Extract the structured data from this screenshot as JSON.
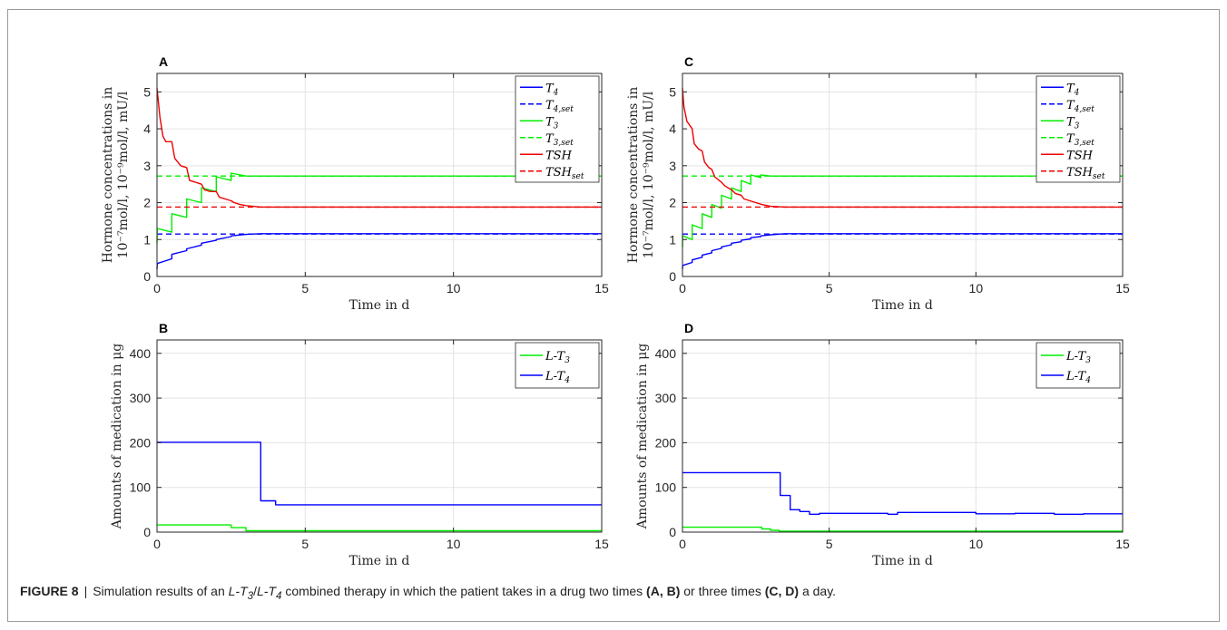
{
  "caption": {
    "label": "FIGURE 8",
    "sep": "|",
    "t1": "Simulation results of an ",
    "drug1": "L-T",
    "drug1_sub": "3",
    "slash": "/",
    "drug2": "L-T",
    "drug2_sub": "4",
    "t2": " combined therapy in which the patient takes in a drug two times ",
    "ref1": "(A, B)",
    "t3": " or three times ",
    "ref2": "(C, D)",
    "t4": " a day."
  },
  "colors": {
    "blue": "#0000ff",
    "green": "#00ee00",
    "red": "#ee0000",
    "grid": "#e3e3e3"
  },
  "chart_data": [
    {
      "panel": "A",
      "type": "line",
      "xlabel": "Time in d",
      "ylabel_line1": "Hormone concentrations in",
      "ylabel_line2": "10⁻⁷mol/l, 10⁻⁹mol/l, mU/l",
      "xlim": [
        0,
        15
      ],
      "ylim": [
        0,
        5.5
      ],
      "xticks": [
        0,
        5,
        10,
        15
      ],
      "yticks": [
        0,
        1,
        2,
        3,
        4,
        5
      ],
      "grid": true,
      "legend_position": "top-right",
      "series": [
        {
          "name": "T",
          "sub": "4",
          "color": "blue",
          "style": "solid",
          "x": [
            0,
            0.01,
            0.5,
            0.5,
            1.0,
            1.0,
            1.5,
            1.5,
            2.0,
            2.0,
            2.5,
            2.5,
            3.0,
            3.5,
            15
          ],
          "y": [
            0.2,
            0.35,
            0.48,
            0.6,
            0.7,
            0.75,
            0.85,
            0.9,
            0.98,
            1.0,
            1.08,
            1.1,
            1.14,
            1.16,
            1.16
          ]
        },
        {
          "name": "T",
          "sub": "4,set",
          "color": "blue",
          "style": "dashed",
          "x": [
            0,
            15
          ],
          "y": [
            1.15,
            1.15
          ]
        },
        {
          "name": "T",
          "sub": "3",
          "color": "green",
          "style": "solid",
          "x": [
            0,
            0.01,
            0.5,
            0.5,
            1.0,
            1.0,
            1.5,
            1.5,
            2.0,
            2.0,
            2.5,
            2.5,
            3.0,
            15
          ],
          "y": [
            0.9,
            1.3,
            1.2,
            1.7,
            1.6,
            2.1,
            2.0,
            2.4,
            2.3,
            2.7,
            2.6,
            2.8,
            2.72,
            2.72
          ]
        },
        {
          "name": "T",
          "sub": "3,set",
          "color": "green",
          "style": "dashed",
          "x": [
            0,
            15
          ],
          "y": [
            2.72,
            2.72
          ]
        },
        {
          "name": "TSH",
          "sub": "",
          "color": "red",
          "style": "solid",
          "x": [
            0,
            0.1,
            0.2,
            0.3,
            0.5,
            0.6,
            0.8,
            1.0,
            1.1,
            1.3,
            1.5,
            1.6,
            1.8,
            2.0,
            2.1,
            2.3,
            2.5,
            2.6,
            2.8,
            3.0,
            3.5,
            15
          ],
          "y": [
            5.1,
            4.3,
            3.8,
            3.65,
            3.65,
            3.2,
            3.0,
            2.95,
            2.6,
            2.55,
            2.5,
            2.35,
            2.3,
            2.3,
            2.15,
            2.1,
            2.05,
            2.0,
            1.95,
            1.92,
            1.88,
            1.88
          ]
        },
        {
          "name": "TSH",
          "sub": "set",
          "color": "red",
          "style": "dashed",
          "x": [
            0,
            15
          ],
          "y": [
            1.88,
            1.88
          ]
        }
      ]
    },
    {
      "panel": "B",
      "type": "line",
      "xlabel": "Time in d",
      "ylabel": "Amounts of medication in μg",
      "xlim": [
        0,
        15
      ],
      "ylim": [
        0,
        430
      ],
      "xticks": [
        0,
        5,
        10,
        15
      ],
      "yticks": [
        0,
        100,
        200,
        300,
        400
      ],
      "grid": true,
      "legend_position": "top-right",
      "series": [
        {
          "name": "L-T",
          "sub": "3",
          "color": "green",
          "style": "solid",
          "x": [
            0,
            2.5,
            2.5,
            3.0,
            3.0,
            15
          ],
          "y": [
            16,
            16,
            10,
            10,
            3,
            3
          ]
        },
        {
          "name": "L-T",
          "sub": "4",
          "color": "blue",
          "style": "solid",
          "x": [
            0,
            3.5,
            3.5,
            4.0,
            4.0,
            15
          ],
          "y": [
            201,
            201,
            70,
            70,
            61,
            61
          ]
        }
      ]
    },
    {
      "panel": "C",
      "type": "line",
      "xlabel": "Time in d",
      "ylabel_line1": "Hormone concentrations in",
      "ylabel_line2": "10⁻⁷mol/l, 10⁻⁹mol/l, mU/l",
      "xlim": [
        0,
        15
      ],
      "ylim": [
        0,
        5.5
      ],
      "xticks": [
        0,
        5,
        10,
        15
      ],
      "yticks": [
        0,
        1,
        2,
        3,
        4,
        5
      ],
      "grid": true,
      "legend_position": "top-right",
      "series": [
        {
          "name": "T",
          "sub": "4",
          "color": "blue",
          "style": "solid",
          "x": [
            0,
            0.01,
            0.33,
            0.33,
            0.67,
            0.67,
            1.0,
            1.0,
            1.33,
            1.33,
            1.67,
            1.67,
            2.0,
            2.0,
            2.33,
            2.33,
            2.67,
            2.67,
            3.0,
            3.5,
            15
          ],
          "y": [
            0.2,
            0.3,
            0.38,
            0.45,
            0.52,
            0.58,
            0.64,
            0.7,
            0.76,
            0.8,
            0.86,
            0.9,
            0.94,
            0.98,
            1.02,
            1.05,
            1.08,
            1.1,
            1.13,
            1.16,
            1.16
          ]
        },
        {
          "name": "T",
          "sub": "4,set",
          "color": "blue",
          "style": "dashed",
          "x": [
            0,
            15
          ],
          "y": [
            1.15,
            1.15
          ]
        },
        {
          "name": "T",
          "sub": "3",
          "color": "green",
          "style": "solid",
          "x": [
            0,
            0.01,
            0.33,
            0.33,
            0.67,
            0.67,
            1.0,
            1.0,
            1.33,
            1.33,
            1.67,
            1.67,
            2.0,
            2.0,
            2.33,
            2.33,
            2.67,
            2.67,
            3.0,
            15
          ],
          "y": [
            0.8,
            1.1,
            1.0,
            1.4,
            1.3,
            1.7,
            1.6,
            1.95,
            1.85,
            2.2,
            2.1,
            2.4,
            2.3,
            2.6,
            2.5,
            2.75,
            2.68,
            2.75,
            2.72,
            2.72
          ]
        },
        {
          "name": "T",
          "sub": "3,set",
          "color": "green",
          "style": "dashed",
          "x": [
            0,
            15
          ],
          "y": [
            2.72,
            2.72
          ]
        },
        {
          "name": "TSH",
          "sub": "",
          "color": "red",
          "style": "solid",
          "x": [
            0,
            0.05,
            0.15,
            0.33,
            0.4,
            0.55,
            0.67,
            0.75,
            0.9,
            1.0,
            1.1,
            1.25,
            1.33,
            1.45,
            1.6,
            1.67,
            1.8,
            2.0,
            2.1,
            2.3,
            2.5,
            2.7,
            3.0,
            3.5,
            15
          ],
          "y": [
            5.1,
            4.6,
            4.2,
            4.0,
            3.6,
            3.45,
            3.4,
            3.1,
            2.95,
            2.9,
            2.7,
            2.6,
            2.55,
            2.45,
            2.38,
            2.35,
            2.25,
            2.2,
            2.1,
            2.05,
            2.0,
            1.95,
            1.9,
            1.88,
            1.88
          ]
        },
        {
          "name": "TSH",
          "sub": "set",
          "color": "red",
          "style": "dashed",
          "x": [
            0,
            15
          ],
          "y": [
            1.88,
            1.88
          ]
        }
      ]
    },
    {
      "panel": "D",
      "type": "line",
      "xlabel": "Time in d",
      "ylabel": "Amounts of medication in μg",
      "xlim": [
        0,
        15
      ],
      "ylim": [
        0,
        430
      ],
      "xticks": [
        0,
        5,
        10,
        15
      ],
      "yticks": [
        0,
        100,
        200,
        300,
        400
      ],
      "grid": true,
      "legend_position": "top-right",
      "series": [
        {
          "name": "L-T",
          "sub": "3",
          "color": "green",
          "style": "solid",
          "x": [
            0,
            2.7,
            2.7,
            3.0,
            3.0,
            3.3,
            3.3,
            15
          ],
          "y": [
            11,
            11,
            7,
            7,
            4,
            4,
            2,
            2
          ]
        },
        {
          "name": "L-T",
          "sub": "4",
          "color": "blue",
          "style": "solid",
          "x": [
            0,
            3.33,
            3.33,
            3.67,
            3.67,
            4.0,
            4.0,
            4.33,
            4.33,
            4.67,
            4.67,
            7.0,
            7.0,
            7.33,
            7.33,
            10.0,
            10.0,
            11.33,
            11.33,
            12.67,
            12.67,
            13.67,
            13.67,
            15
          ],
          "y": [
            133,
            133,
            82,
            82,
            50,
            50,
            46,
            46,
            40,
            40,
            42,
            42,
            40,
            40,
            44,
            44,
            41,
            41,
            42,
            42,
            40,
            40,
            41,
            41
          ]
        }
      ]
    }
  ]
}
